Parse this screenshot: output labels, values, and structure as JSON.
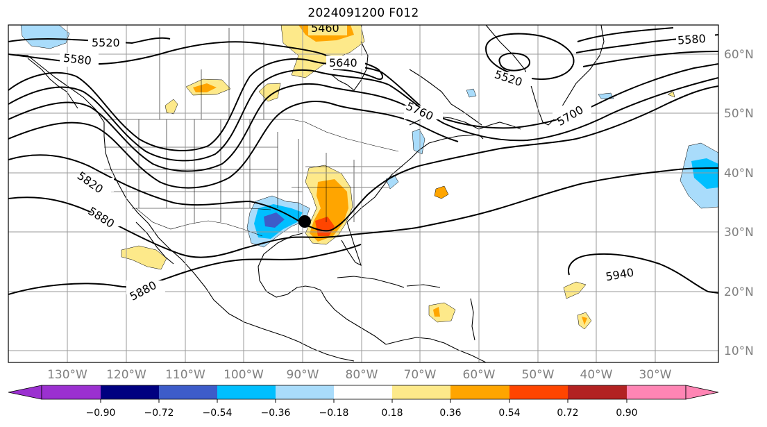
{
  "title": "2024091200 F012",
  "lon_labels": [
    "130°W",
    "120°W",
    "110°W",
    "100°W",
    "90°W",
    "80°W",
    "70°W",
    "60°W",
    "50°W",
    "40°W",
    "30°W"
  ],
  "lat_labels": [
    "60°N",
    "50°N",
    "40°N",
    "30°N",
    "20°N",
    "10°N"
  ],
  "contour_labels": {
    "c5520_west": "5520",
    "c5580_west": "5580",
    "c5460": "5460",
    "c5640": "5640",
    "c5520_low": "5520",
    "c5580_east": "5580",
    "c5760": "5760",
    "c5700": "5700",
    "c5820": "5820",
    "c5880_west": "5880",
    "c5880_south": "5880",
    "c5940": "5940"
  },
  "colorbar": {
    "ticks": [
      "−0.90",
      "−0.72",
      "−0.54",
      "−0.36",
      "−0.18",
      "0.18",
      "0.36",
      "0.54",
      "0.72",
      "0.90"
    ],
    "colors": [
      "#1a0a8c",
      "#3d5cc9",
      "#00bfff",
      "#a9dcfb",
      "#ffffff",
      "#fde98a",
      "#ffa500",
      "#ff4500",
      "#b22222",
      "#ff85b4"
    ],
    "extend_low_color": "#9b30d0",
    "extend_high_color": "#ff85b4"
  },
  "marker": "storm-center",
  "colors": {
    "contour": "#000000",
    "coast": "#000000",
    "grid": "#9a9a9a",
    "axis_label": "#808080",
    "pos_light": "#fde98a",
    "pos_mid": "#ffa500",
    "pos_high": "#ff4500",
    "neg_light": "#a9dcfb",
    "neg_mid": "#00bfff",
    "neg_high": "#3d5cc9"
  }
}
